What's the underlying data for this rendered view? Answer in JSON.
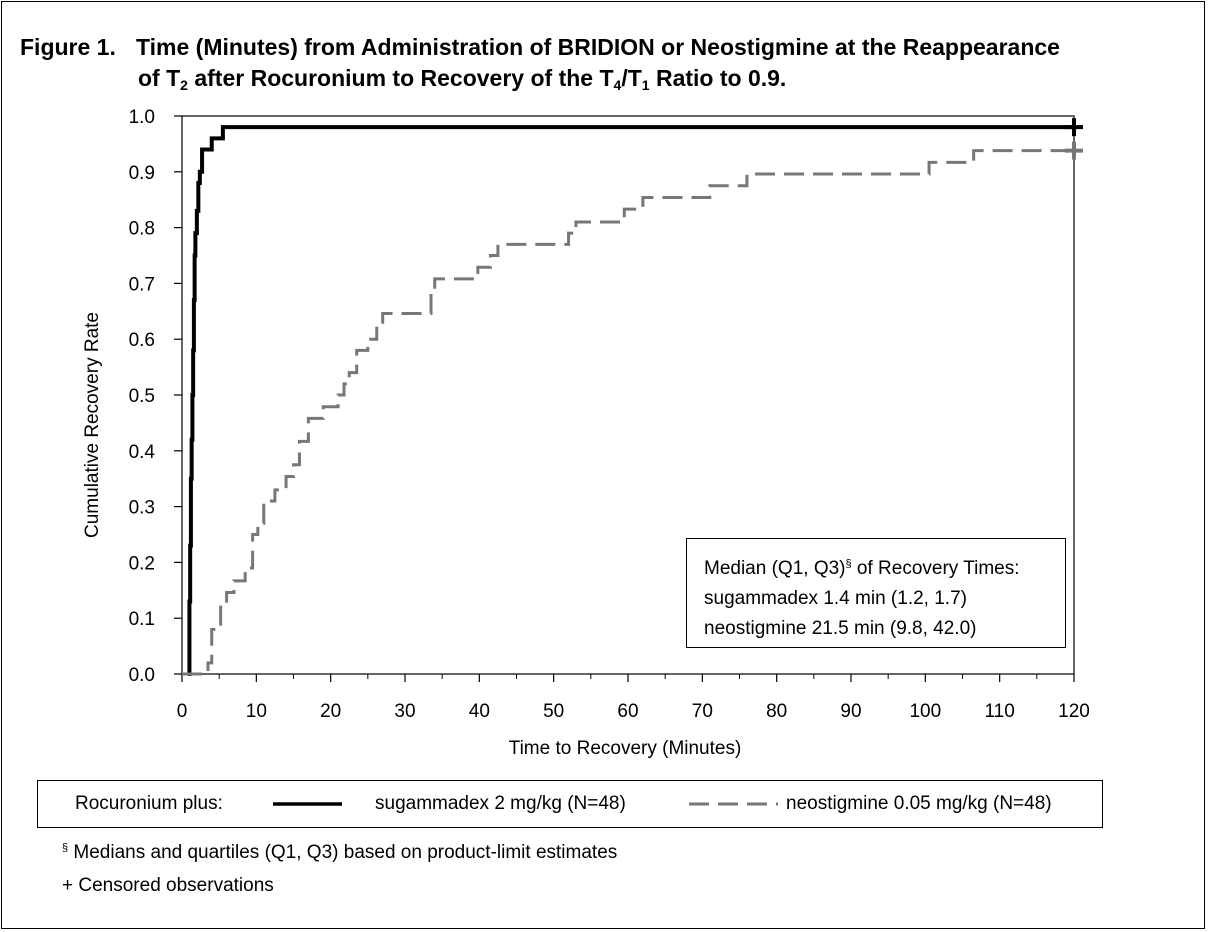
{
  "figure": {
    "number": "Figure 1.",
    "title_line1": "Time (Minutes) from Administration of BRIDION or Neostigmine at the Reappearance",
    "title_line2_parts": [
      "of T",
      "2",
      " after Rocuronium to Recovery of the  T",
      "4",
      "/T",
      "1",
      " Ratio to 0.9."
    ]
  },
  "chart_data": {
    "type": "line",
    "title": "Time (Minutes) from Administration of BRIDION or Neostigmine at the Reappearance of T2 after Rocuronium to Recovery of the T4/T1 Ratio to 0.9.",
    "xlabel": "Time to Recovery (Minutes)",
    "ylabel": "Cumulative Recovery Rate",
    "xlim": [
      0,
      120
    ],
    "ylim": [
      0.0,
      1.0
    ],
    "x_ticks": [
      0,
      10,
      20,
      30,
      40,
      50,
      60,
      70,
      80,
      90,
      100,
      110,
      120
    ],
    "x_tick_labels": [
      "0",
      "10",
      "20",
      "30",
      "40",
      "50",
      "60",
      "70",
      "80",
      "90",
      "100",
      "110",
      "120"
    ],
    "y_ticks": [
      0.0,
      0.1,
      0.2,
      0.3,
      0.4,
      0.5,
      0.6,
      0.7,
      0.8,
      0.9,
      1.0
    ],
    "y_tick_labels": [
      "0.0",
      "0.1",
      "0.2",
      "0.3",
      "0.4",
      "0.5",
      "0.6",
      "0.7",
      "0.8",
      "0.9",
      "1.0"
    ],
    "grid": false,
    "step": true,
    "series": [
      {
        "name": "sugammadex 2 mg/kg (N=48)",
        "color": "#000000",
        "style": "solid",
        "x": [
          0.8,
          1.0,
          1.1,
          1.2,
          1.3,
          1.4,
          1.5,
          1.6,
          1.7,
          1.8,
          2.0,
          2.2,
          2.4,
          2.7,
          3.0,
          4.0,
          5.5,
          120
        ],
        "y": [
          0.0,
          0.13,
          0.23,
          0.35,
          0.42,
          0.5,
          0.58,
          0.67,
          0.75,
          0.79,
          0.83,
          0.88,
          0.9,
          0.94,
          0.94,
          0.96,
          0.98,
          0.98
        ],
        "censored": [
          {
            "x": 120,
            "y": 0.98
          }
        ]
      },
      {
        "name": "neostigmine 0.05 mg/kg (N=48)",
        "color": "#777777",
        "style": "dashed",
        "x": [
          0,
          3.5,
          4.0,
          5.2,
          6.0,
          7.0,
          8.5,
          9.5,
          10.2,
          11.0,
          12.5,
          14.0,
          15.0,
          15.8,
          17.0,
          19.0,
          21.0,
          21.8,
          22.5,
          23.5,
          25.0,
          26.2,
          27.0,
          33.5,
          34.0,
          39.8,
          41.5,
          42.5,
          52.0,
          53.0,
          59.5,
          62.0,
          71.0,
          76.0,
          100.5,
          106.5,
          120
        ],
        "y": [
          0.0,
          0.02,
          0.08,
          0.125,
          0.146,
          0.167,
          0.19,
          0.25,
          0.27,
          0.31,
          0.33,
          0.354,
          0.375,
          0.417,
          0.458,
          0.479,
          0.5,
          0.52,
          0.54,
          0.58,
          0.6,
          0.625,
          0.646,
          0.688,
          0.708,
          0.729,
          0.75,
          0.77,
          0.79,
          0.81,
          0.833,
          0.854,
          0.875,
          0.896,
          0.917,
          0.938,
          0.938
        ],
        "censored": [
          {
            "x": 120,
            "y": 0.938
          }
        ]
      }
    ]
  },
  "median_box": {
    "line1": "Median (Q1, Q3)",
    "line1_mark": "§",
    "line1_tail": " of Recovery Times:",
    "line2": "sugammadex 1.4 min (1.2, 1.7)",
    "line3": "neostigmine 21.5 min (9.8, 42.0)"
  },
  "legend": {
    "prefix": "Rocuronium plus:",
    "item1": "sugammadex 2 mg/kg (N=48)",
    "item2": "neostigmine 0.05 mg/kg (N=48)"
  },
  "footnotes": {
    "note1_mark": "§",
    "note1": " Medians and quartiles (Q1, Q3) based on product-limit estimates",
    "note2": "+ Censored observations"
  }
}
